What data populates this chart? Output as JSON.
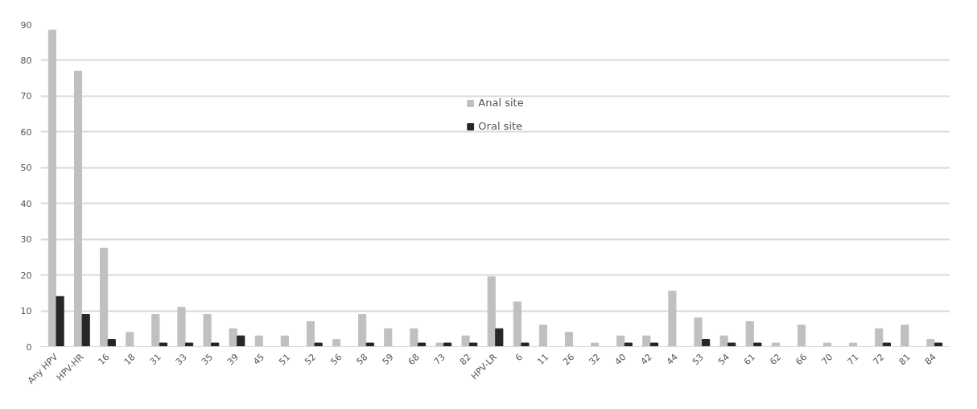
{
  "chart_data": {
    "type": "bar",
    "categories": [
      "Any HPV",
      "HPV-HR",
      "16",
      "18",
      "31",
      "33",
      "35",
      "39",
      "45",
      "51",
      "52",
      "56",
      "58",
      "59",
      "68",
      "73",
      "82",
      "HPV-LR",
      "6",
      "11",
      "26",
      "32",
      "40",
      "42",
      "44",
      "53",
      "54",
      "61",
      "62",
      "66",
      "70",
      "71",
      "72",
      "81",
      "84"
    ],
    "series": [
      {
        "name": "Anal site",
        "color": "#c0c0c0",
        "values": [
          88.5,
          77,
          27.5,
          4,
          9,
          11,
          9,
          5,
          3,
          3,
          7,
          2,
          9,
          5,
          5,
          1,
          3,
          19.5,
          12.5,
          6,
          4,
          1,
          3,
          3,
          15.5,
          8,
          3,
          7,
          1,
          6,
          1,
          1,
          5,
          6,
          2
        ]
      },
      {
        "name": "Oral site",
        "color": "#262626",
        "values": [
          14,
          9,
          2,
          0,
          1,
          1,
          1,
          3,
          0,
          0,
          1,
          0,
          1,
          0,
          1,
          1,
          1,
          5,
          1,
          0,
          0,
          0,
          1,
          1,
          0,
          2,
          1,
          1,
          0,
          0,
          0,
          0,
          1,
          0,
          1
        ]
      }
    ],
    "ylim": [
      0,
      90
    ],
    "yticks": [
      0,
      10,
      20,
      30,
      40,
      50,
      60,
      70,
      80,
      90
    ],
    "grid": "y",
    "legend": "top"
  }
}
